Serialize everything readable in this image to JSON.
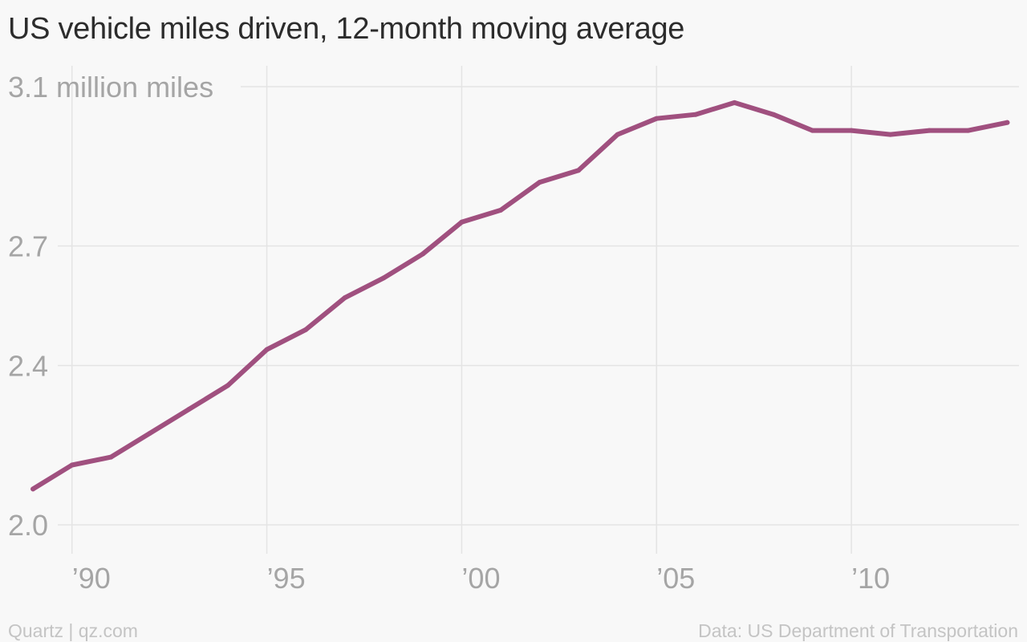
{
  "title": "US vehicle miles driven, 12-month moving average",
  "footer": {
    "credit": "Quartz | qz.com",
    "source": "Data: US Department of Transportation"
  },
  "colors": {
    "line": "#a0507f",
    "grid": "#e4e4e4",
    "tick_text": "#a5a5a5",
    "title_text": "#2c2c2c",
    "footer_text": "#c4c4c4",
    "background": "#f8f8f8"
  },
  "chart_data": {
    "type": "line",
    "title": "US vehicle miles driven, 12-month moving average",
    "xlabel": "",
    "ylabel": "",
    "x": [
      1989,
      1990,
      1991,
      1992,
      1993,
      1994,
      1995,
      1996,
      1997,
      1998,
      1999,
      2000,
      2001,
      2002,
      2003,
      2004,
      2005,
      2006,
      2007,
      2008,
      2009,
      2010,
      2011,
      2012,
      2013,
      2014
    ],
    "series": [
      {
        "values": [
          2.09,
          2.15,
          2.17,
          2.23,
          2.29,
          2.35,
          2.44,
          2.49,
          2.57,
          2.62,
          2.68,
          2.76,
          2.79,
          2.86,
          2.89,
          2.98,
          3.02,
          3.03,
          3.06,
          3.03,
          2.99,
          2.99,
          2.98,
          2.99,
          2.99,
          3.01
        ]
      }
    ],
    "ylim": [
      2.0,
      3.2
    ],
    "xlim": [
      1988.4,
      2014.3
    ],
    "y_ticks": [
      {
        "value": 2.0,
        "label": "2.0"
      },
      {
        "value": 2.4,
        "label": "2.4"
      },
      {
        "value": 2.7,
        "label": "2.7"
      },
      {
        "value": 3.1,
        "label": "3.1 million miles"
      }
    ],
    "x_ticks": [
      {
        "value": 1990,
        "label": "’90"
      },
      {
        "value": 1995,
        "label": "’95"
      },
      {
        "value": 2000,
        "label": "’00"
      },
      {
        "value": 2005,
        "label": "’05"
      },
      {
        "value": 2010,
        "label": "’10"
      }
    ],
    "grid": true,
    "legend": "none"
  }
}
